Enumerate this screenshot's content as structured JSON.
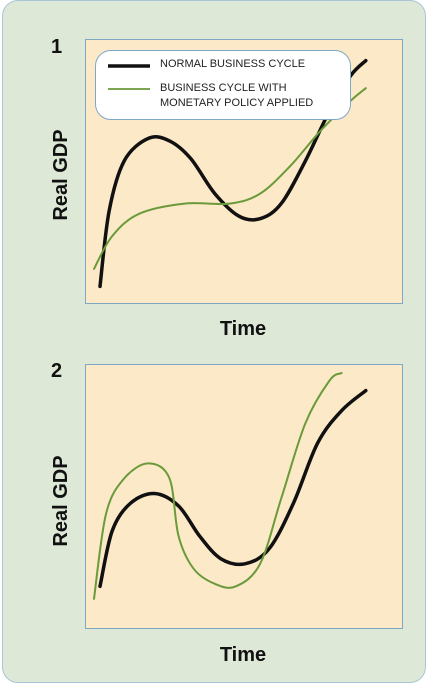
{
  "chart_data": [
    {
      "type": "line",
      "panel_label": "1",
      "xlabel": "Time",
      "ylabel": "Real GDP",
      "legend": [
        "NORMAL BUSINESS CYCLE",
        "BUSINESS CYCLE WITH MONETARY POLICY APPLIED"
      ],
      "legend_placement": "top-left",
      "grid": false,
      "series": [
        {
          "name": "NORMAL BUSINESS CYCLE",
          "color": "#111111",
          "points": [
            [
              0.02,
              0.05
            ],
            [
              0.05,
              0.35
            ],
            [
              0.1,
              0.55
            ],
            [
              0.18,
              0.64
            ],
            [
              0.25,
              0.63
            ],
            [
              0.32,
              0.56
            ],
            [
              0.4,
              0.42
            ],
            [
              0.48,
              0.33
            ],
            [
              0.55,
              0.32
            ],
            [
              0.62,
              0.38
            ],
            [
              0.7,
              0.55
            ],
            [
              0.78,
              0.75
            ],
            [
              0.85,
              0.89
            ],
            [
              0.9,
              0.95
            ]
          ]
        },
        {
          "name": "BUSINESS CYCLE WITH MONETARY POLICY APPLIED",
          "color": "#6a9a3a",
          "points": [
            [
              0.0,
              0.12
            ],
            [
              0.06,
              0.25
            ],
            [
              0.15,
              0.34
            ],
            [
              0.3,
              0.38
            ],
            [
              0.45,
              0.38
            ],
            [
              0.55,
              0.42
            ],
            [
              0.65,
              0.53
            ],
            [
              0.75,
              0.67
            ],
            [
              0.85,
              0.79
            ],
            [
              0.9,
              0.84
            ]
          ]
        }
      ]
    },
    {
      "type": "line",
      "panel_label": "2",
      "xlabel": "Time",
      "ylabel": "Real GDP",
      "grid": false,
      "series": [
        {
          "color": "#111111",
          "points": [
            [
              0.02,
              0.15
            ],
            [
              0.06,
              0.37
            ],
            [
              0.12,
              0.48
            ],
            [
              0.2,
              0.52
            ],
            [
              0.28,
              0.47
            ],
            [
              0.35,
              0.35
            ],
            [
              0.42,
              0.26
            ],
            [
              0.5,
              0.24
            ],
            [
              0.58,
              0.3
            ],
            [
              0.66,
              0.48
            ],
            [
              0.74,
              0.72
            ],
            [
              0.82,
              0.85
            ],
            [
              0.9,
              0.93
            ]
          ]
        },
        {
          "color": "#6a9a3a",
          "points": [
            [
              0.0,
              0.1
            ],
            [
              0.04,
              0.44
            ],
            [
              0.1,
              0.58
            ],
            [
              0.18,
              0.64
            ],
            [
              0.25,
              0.58
            ],
            [
              0.28,
              0.35
            ],
            [
              0.33,
              0.22
            ],
            [
              0.4,
              0.16
            ],
            [
              0.47,
              0.15
            ],
            [
              0.55,
              0.24
            ],
            [
              0.62,
              0.5
            ],
            [
              0.7,
              0.8
            ],
            [
              0.78,
              0.97
            ],
            [
              0.82,
              1.0
            ]
          ]
        }
      ]
    }
  ]
}
